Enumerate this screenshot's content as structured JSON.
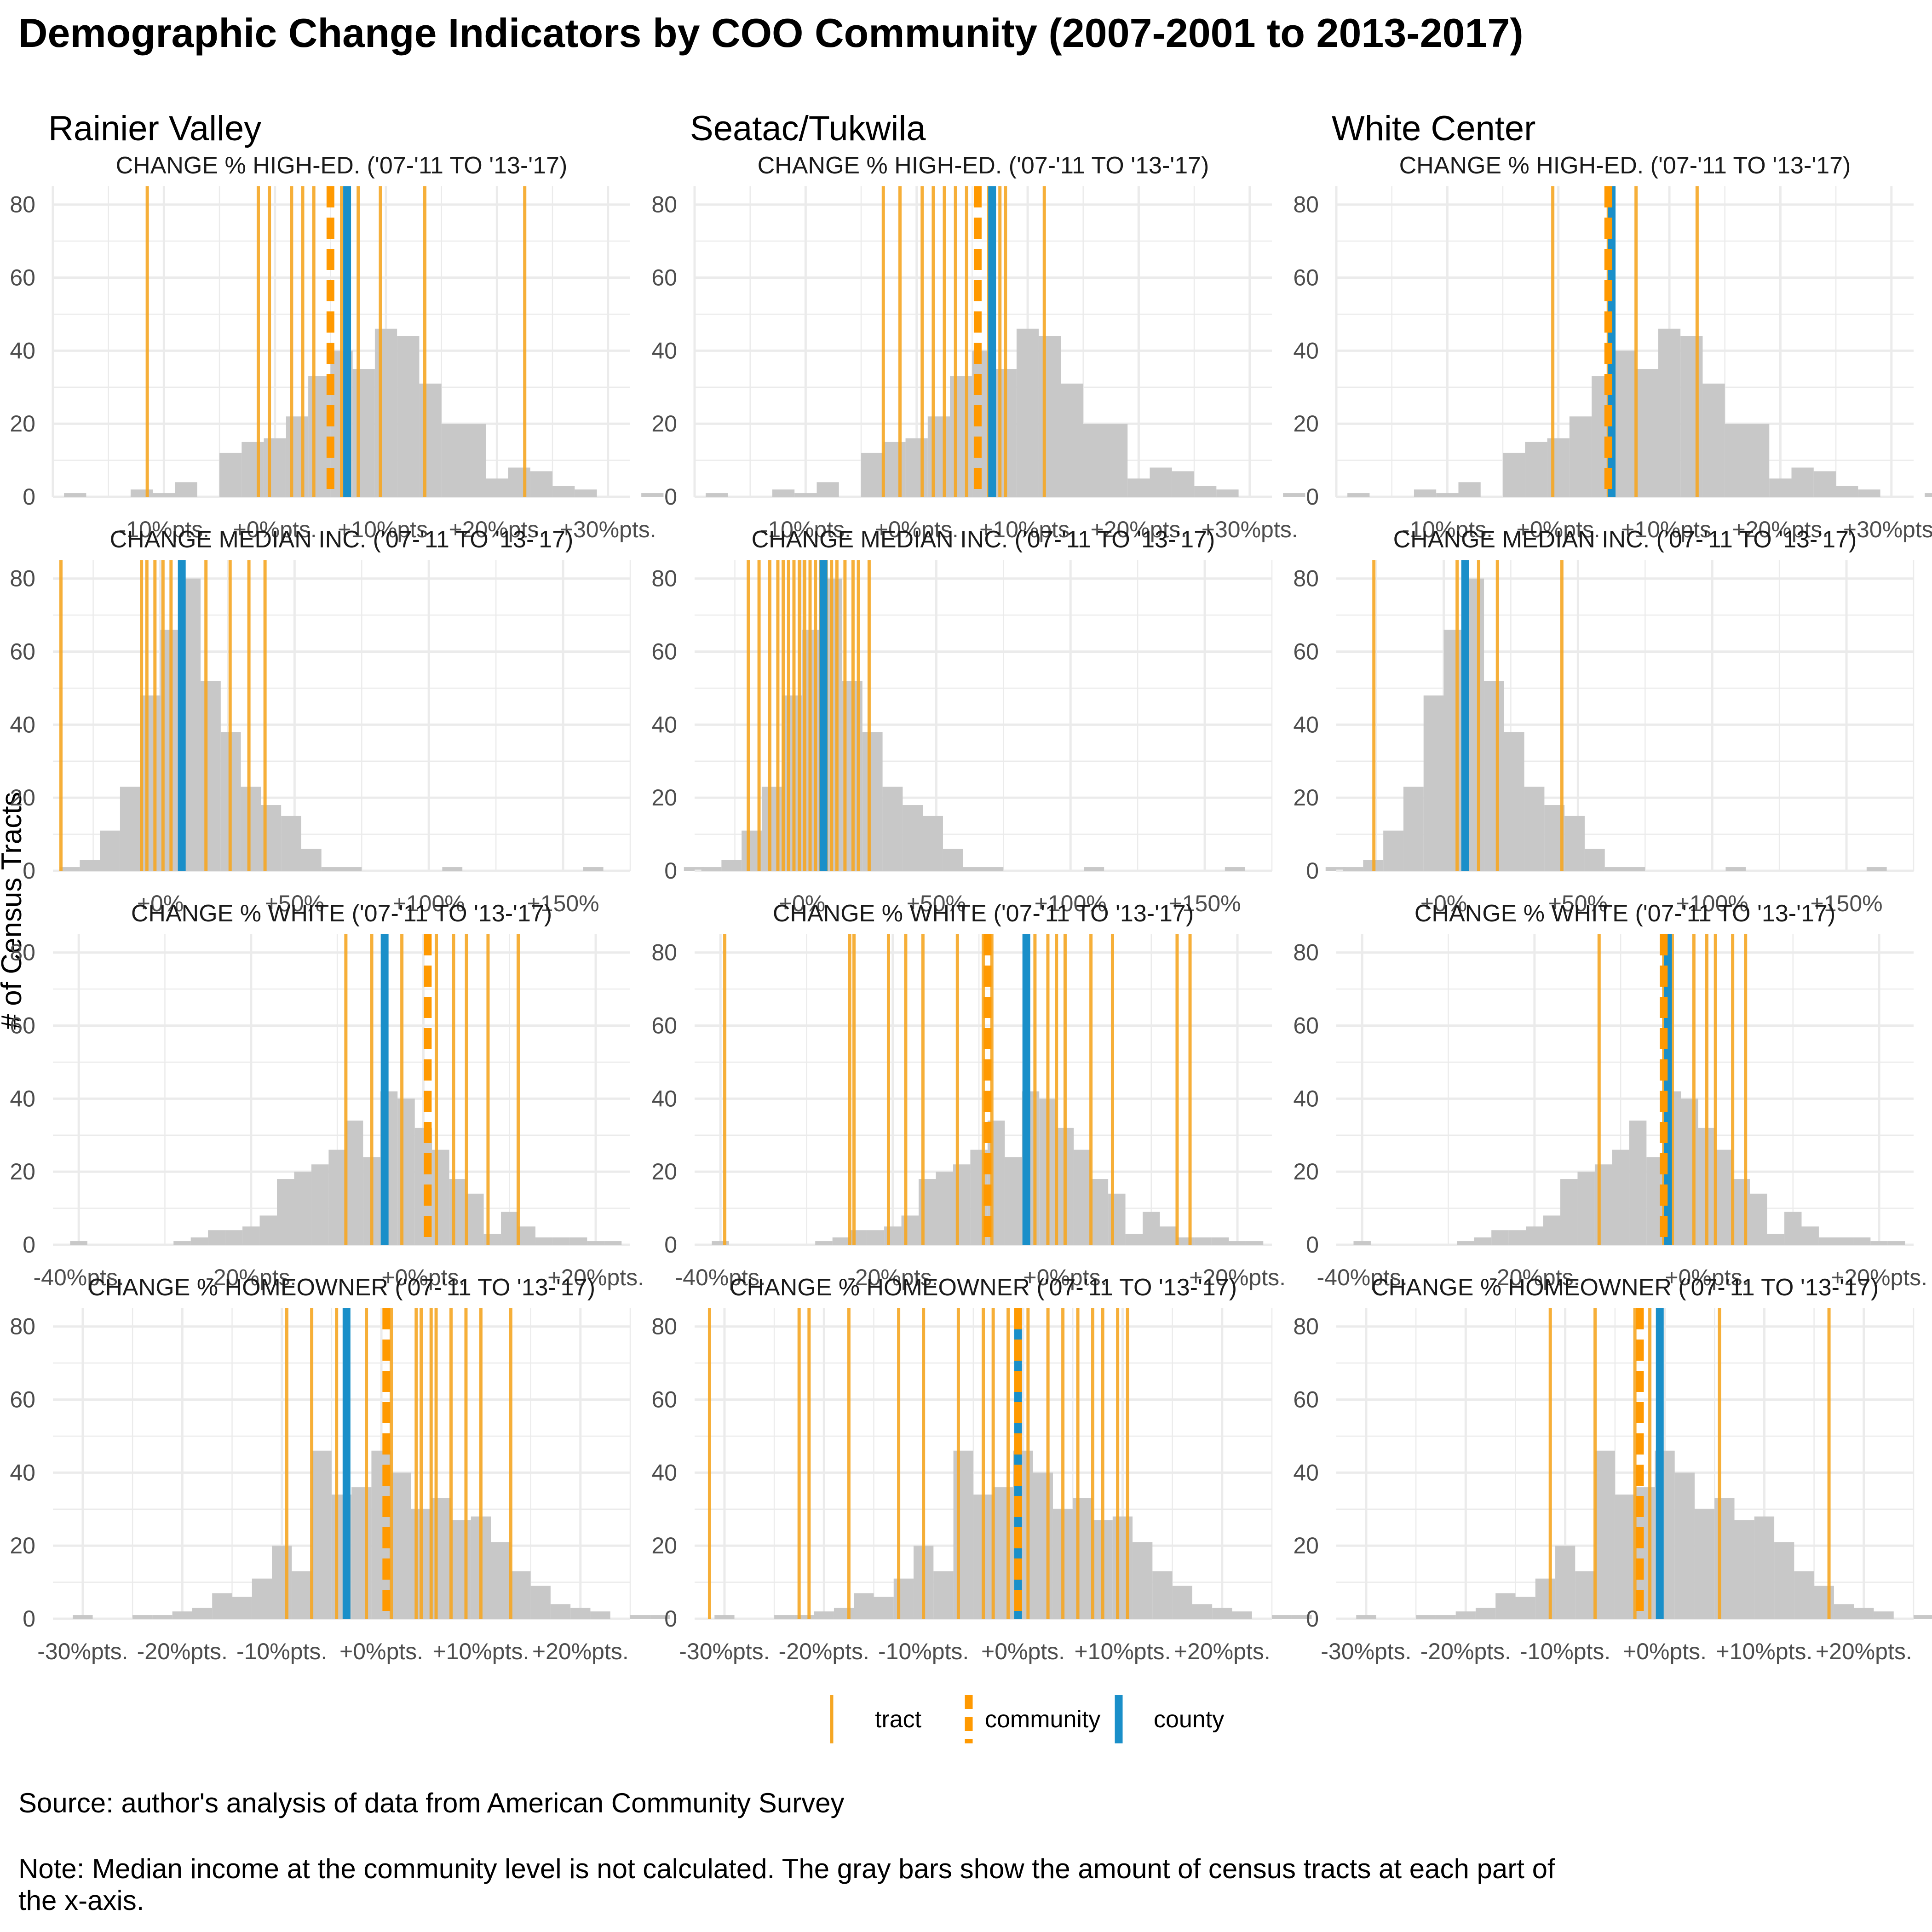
{
  "title": "Demographic Change Indicators by COO Community (2007-2001 to 2013-2017)",
  "ylabel": "# of Census Tracts",
  "caption_source": "Source: author's analysis of data from American Community Survey",
  "caption_note_line1": "Note: Median income at the community level is not calculated. The gray bars show the amount of census tracts at each part of",
  "caption_note_line2": "the x-axis.",
  "legend": {
    "tract": "tract",
    "community": "community",
    "county": "county"
  },
  "colors": {
    "histogram": "#c8c8c8",
    "tract": "#f5a623",
    "community": "#ff9900",
    "county": "#1a8fc9",
    "grid": "#ebebeb"
  },
  "chart_data": {
    "type": "histogram",
    "ylim": [
      0,
      85
    ],
    "yticks": [
      0,
      20,
      40,
      60,
      80
    ],
    "communities": [
      "Rainier Valley",
      "Seatac/Tukwila",
      "White Center"
    ],
    "indicators": [
      {
        "id": "highed",
        "title": "CHANGE % HIGH-ED. ('07-'11 TO '13-'17)",
        "xlim": [
          -20,
          32
        ],
        "xticks": [
          -10,
          0,
          10,
          20,
          30
        ],
        "xtick_labels": [
          "-10%pts.",
          "+0%pts.",
          "+10%pts.",
          "+20%pts.",
          "+30%pts."
        ],
        "bin_start": -19,
        "bin_width": 2,
        "counts": [
          1,
          0,
          0,
          2,
          1,
          4,
          0,
          12,
          15,
          16,
          22,
          33,
          40,
          35,
          46,
          44,
          31,
          20,
          20,
          5,
          8,
          7,
          3,
          2,
          0,
          0,
          1
        ],
        "tracts": [
          [
            -11.5,
            -1.5,
            -0.5,
            1.5,
            2.5,
            3.5,
            6.0,
            7.5,
            9.5,
            13.5,
            22.5
          ],
          [
            -3.0,
            -1.5,
            0.5,
            1.5,
            2.5,
            3.5,
            4.5,
            6.5,
            6.8,
            7.5,
            8.0,
            11.5
          ],
          [
            -0.5,
            4.5,
            7.0,
            12.5
          ]
        ],
        "community": [
          5.0,
          5.5,
          4.5
        ],
        "county": [
          6.5,
          6.8,
          4.8
        ]
      },
      {
        "id": "income",
        "title": "CHANGE MEDIAN INC. ('07-'11 TO '13-'17)",
        "xlim": [
          -40,
          175
        ],
        "xticks": [
          0,
          50,
          100,
          150
        ],
        "xtick_labels": [
          "+0%",
          "+50%",
          "+100%",
          "+150%"
        ],
        "bin_start": -37.5,
        "bin_width": 7.5,
        "counts": [
          1,
          3,
          11,
          23,
          48,
          66,
          80,
          52,
          38,
          23,
          18,
          15,
          6,
          1,
          1,
          0,
          0,
          0,
          0,
          1,
          0,
          0,
          0,
          0,
          0,
          0,
          1,
          0,
          0,
          0,
          0,
          1
        ],
        "tracts": [
          [
            -37,
            -7,
            -5,
            -2,
            1,
            4,
            17,
            26,
            33,
            39
          ],
          [
            -20,
            -16,
            -12,
            -9,
            -7,
            -5,
            -3,
            -1,
            1,
            3,
            5,
            7,
            9,
            11,
            13,
            16,
            19,
            21,
            25
          ],
          [
            -26,
            5,
            13,
            20,
            44
          ]
        ],
        "community": [],
        "county": [
          8,
          8,
          8
        ]
      },
      {
        "id": "white",
        "title": "CHANGE % WHITE ('07-'11 TO '13-'17)",
        "xlim": [
          -43,
          24
        ],
        "xticks": [
          -40,
          -20,
          0,
          20
        ],
        "xtick_labels": [
          "-40%pts.",
          "-20%pts.",
          "+0%pts.",
          "+20%pts."
        ],
        "bin_start": -41,
        "bin_width": 2,
        "counts": [
          1,
          0,
          0,
          0,
          0,
          0,
          1,
          2,
          4,
          4,
          5,
          8,
          18,
          20,
          22,
          26,
          34,
          24,
          42,
          40,
          32,
          26,
          18,
          14,
          3,
          9,
          5,
          2,
          2,
          2,
          1,
          1
        ],
        "tracts": [
          [
            -9,
            -6,
            -2.5,
            1.5,
            3.5,
            5,
            7.5,
            11
          ],
          [
            -39.5,
            -25,
            -24.5,
            -20.5,
            -18.5,
            -16.5,
            -12.5,
            -9.5,
            -8.5,
            -4.5,
            -3.5,
            -2,
            -1,
            0,
            3,
            5.5,
            13,
            14.5
          ],
          [
            -12.5,
            -5,
            -4.5,
            -4,
            -1.5,
            0,
            1,
            3,
            4.5
          ]
        ],
        "community": [
          0.5,
          -9,
          -5
        ],
        "county": [
          -4.5,
          -4.5,
          -4.5
        ]
      },
      {
        "id": "homeowner",
        "title": "CHANGE % HOMEOWNER ('07-'11 TO '13-'17)",
        "xlim": [
          -33,
          25
        ],
        "xticks": [
          -30,
          -20,
          -10,
          0,
          10,
          20
        ],
        "xtick_labels": [
          "-30%pts.",
          "-20%pts.",
          "-10%pts.",
          "+0%pts.",
          "+10%pts.",
          "+20%pts."
        ],
        "bin_start": -31,
        "bin_width": 2,
        "counts": [
          1,
          0,
          0,
          1,
          1,
          2,
          3,
          7,
          6,
          11,
          20,
          13,
          46,
          34,
          36,
          46,
          40,
          30,
          33,
          27,
          28,
          21,
          13,
          9,
          4,
          3,
          2,
          0,
          1,
          1
        ],
        "tracts": [
          [
            -9.5,
            -7,
            -4.5,
            -1.5,
            1,
            3.5,
            4,
            5,
            5.5,
            7,
            8.5,
            10,
            13
          ],
          [
            -31.5,
            -22.5,
            -21.5,
            -17.5,
            -12.5,
            -10,
            -6.5,
            -4,
            -3,
            -1.5,
            0.5,
            2.5,
            4,
            5.5,
            7,
            8,
            9.5,
            10.5
          ],
          [
            -11.5,
            -7,
            -3,
            -1.5,
            5.5,
            16.5
          ]
        ],
        "community": [
          0.5,
          -0.5,
          -2.5
        ],
        "county": [
          -3.5,
          -0.5,
          -0.5
        ]
      }
    ]
  }
}
